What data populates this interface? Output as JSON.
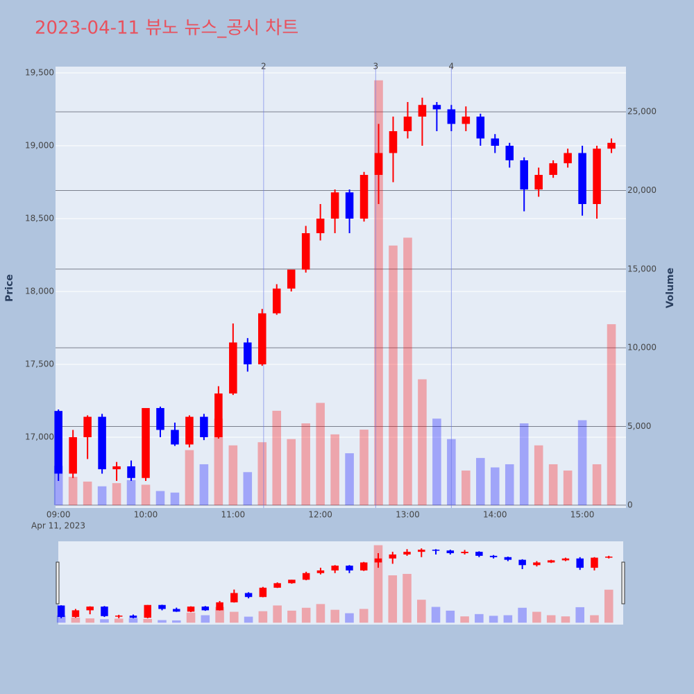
{
  "chart_data": {
    "type": "candlestick",
    "title": "2023-04-11 뷰노 뉴스_공시 차트",
    "x": [
      "09:00",
      "09:10",
      "09:20",
      "09:30",
      "09:40",
      "09:50",
      "10:00",
      "10:10",
      "10:20",
      "10:30",
      "10:40",
      "10:50",
      "11:00",
      "11:10",
      "11:20",
      "11:30",
      "11:40",
      "11:50",
      "12:00",
      "12:10",
      "12:20",
      "12:30",
      "12:40",
      "12:50",
      "13:00",
      "13:10",
      "13:20",
      "13:30",
      "13:40",
      "13:50",
      "14:00",
      "14:10",
      "14:20",
      "14:30",
      "14:40",
      "14:50",
      "15:00",
      "15:10",
      "15:20"
    ],
    "open": [
      17180,
      16750,
      17000,
      17140,
      16780,
      16800,
      16720,
      17200,
      17050,
      16950,
      17140,
      17000,
      17300,
      17650,
      17500,
      17850,
      18020,
      18150,
      18400,
      18500,
      18680,
      18500,
      18800,
      18950,
      19100,
      19200,
      19280,
      19250,
      19150,
      19200,
      19050,
      19000,
      18900,
      18700,
      18800,
      18880,
      18950,
      18600,
      18980
    ],
    "high": [
      17190,
      17050,
      17150,
      17160,
      16830,
      16840,
      17200,
      17210,
      17100,
      17150,
      17160,
      17350,
      17780,
      17680,
      17880,
      18050,
      18150,
      18450,
      18600,
      18700,
      18700,
      18820,
      19150,
      19200,
      19300,
      19330,
      19300,
      19280,
      19270,
      19220,
      19080,
      19020,
      18920,
      18850,
      18900,
      18980,
      19000,
      19000,
      19050
    ],
    "low": [
      16700,
      16720,
      16850,
      16750,
      16700,
      16700,
      16700,
      17000,
      16940,
      16930,
      16980,
      16990,
      17290,
      17450,
      17490,
      17840,
      18000,
      18130,
      18350,
      18400,
      18400,
      18480,
      18600,
      18750,
      19050,
      19000,
      19100,
      19100,
      19100,
      19000,
      18950,
      18850,
      18550,
      18650,
      18780,
      18850,
      18520,
      18500,
      18950
    ],
    "close": [
      16750,
      17000,
      17140,
      16780,
      16800,
      16720,
      17200,
      17050,
      16950,
      17140,
      17000,
      17300,
      17650,
      17500,
      17850,
      18020,
      18150,
      18400,
      18500,
      18680,
      18500,
      18800,
      18950,
      19100,
      19200,
      19280,
      19250,
      19150,
      19200,
      19050,
      19000,
      18900,
      18700,
      18800,
      18880,
      18950,
      18600,
      18980,
      19020
    ],
    "volume": [
      2500,
      1800,
      1500,
      1200,
      1400,
      1600,
      1300,
      900,
      800,
      3500,
      2600,
      5500,
      3800,
      2100,
      4000,
      6000,
      4200,
      5200,
      6500,
      4500,
      3300,
      4800,
      27000,
      16500,
      17000,
      8000,
      5500,
      4200,
      2200,
      3000,
      2400,
      2600,
      5200,
      3800,
      2600,
      2200,
      5400,
      2600,
      11500
    ],
    "increasing_color": "#ff0000",
    "decreasing_color": "#0000ff",
    "xlim": [
      "08:58",
      "15:30"
    ],
    "xticks": [
      "09:00",
      "10:00",
      "11:00",
      "12:00",
      "13:00",
      "14:00",
      "15:00"
    ],
    "date_label": "Apr 11, 2023",
    "ylim": [
      16514,
      19543
    ],
    "yticks": [
      {
        "value": 17000,
        "label": "17,000"
      },
      {
        "value": 17500,
        "label": "17,500"
      },
      {
        "value": 18000,
        "label": "18,000"
      },
      {
        "value": 18500,
        "label": "18,500"
      },
      {
        "value": 19000,
        "label": "19,000"
      },
      {
        "value": 19500,
        "label": "19,500"
      }
    ],
    "y2lim": [
      -180,
      27870
    ],
    "y2ticks": [
      0,
      {
        "value": 5000,
        "label": "5,000"
      },
      {
        "value": 10000,
        "label": "10,000"
      },
      {
        "value": 15000,
        "label": "15,000"
      },
      {
        "value": 20000,
        "label": "20,000"
      },
      {
        "value": 25000,
        "label": "25,000"
      }
    ],
    "ylabel": "Price",
    "y2label": "Volume",
    "annotations": [
      {
        "x": "11:21",
        "text": "2"
      },
      {
        "x": "12:38",
        "text": "3"
      },
      {
        "x": "13:30",
        "text": "4"
      }
    ]
  }
}
